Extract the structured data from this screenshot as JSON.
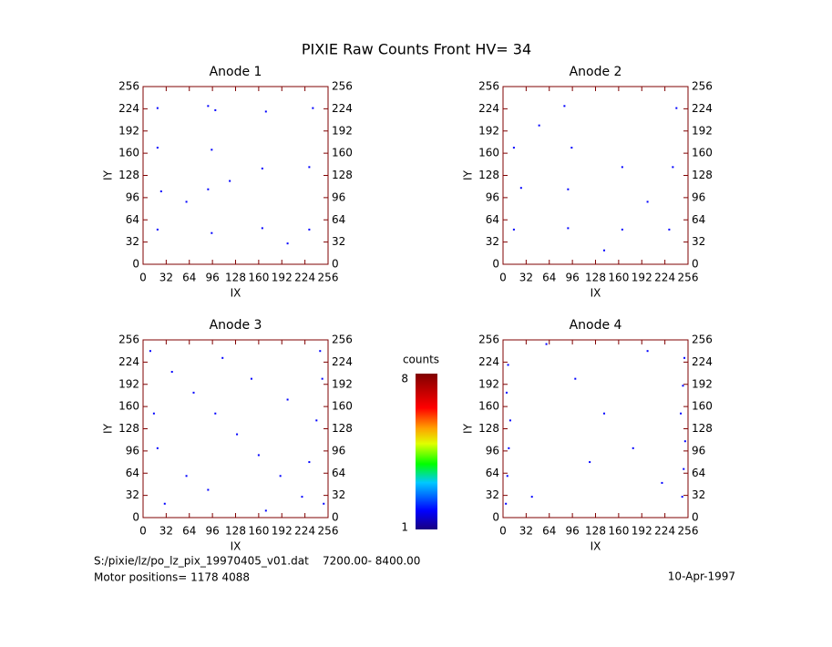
{
  "figure": {
    "title": "PIXIE Raw Counts Front HV= 34",
    "colorbar": {
      "label": "counts",
      "clim": [
        1,
        8
      ],
      "ticks": [
        1,
        8
      ]
    },
    "file_note": "S:/pixie/lz/po_lz_pix_19970405_v01.dat    7200.00- 8400.00",
    "motor_note": "Motor positions= 1178 4088",
    "date": "10-Apr-1997"
  },
  "chart_data": [
    {
      "type": "scatter",
      "title": "Anode 1",
      "xlabel": "IX",
      "ylabel": "IY",
      "xlim": [
        0,
        256
      ],
      "ylim": [
        0,
        256
      ],
      "xticks": [
        0,
        32,
        64,
        96,
        128,
        160,
        192,
        224,
        256
      ],
      "yticks": [
        0,
        32,
        64,
        96,
        128,
        160,
        192,
        224,
        256
      ],
      "series": [
        {
          "color": "#0000ff",
          "x": [
            20,
            90,
            100,
            170,
            235,
            20,
            95,
            165,
            230,
            25,
            90,
            20,
            95,
            165,
            230,
            120,
            60,
            200
          ],
          "y": [
            225,
            228,
            222,
            220,
            225,
            168,
            165,
            138,
            140,
            105,
            108,
            50,
            45,
            52,
            50,
            120,
            90,
            30
          ]
        }
      ]
    },
    {
      "type": "scatter",
      "title": "Anode 2",
      "xlabel": "IX",
      "ylabel": "IY",
      "xlim": [
        0,
        256
      ],
      "ylim": [
        0,
        256
      ],
      "xticks": [
        0,
        32,
        64,
        96,
        128,
        160,
        192,
        224,
        256
      ],
      "yticks": [
        0,
        32,
        64,
        96,
        128,
        160,
        192,
        224,
        256
      ],
      "series": [
        {
          "color": "#0000ff",
          "x": [
            85,
            240,
            15,
            95,
            165,
            235,
            25,
            90,
            15,
            90,
            165,
            230,
            50,
            200,
            140
          ],
          "y": [
            228,
            225,
            168,
            168,
            140,
            140,
            110,
            108,
            50,
            52,
            50,
            50,
            200,
            90,
            20
          ]
        }
      ]
    },
    {
      "type": "scatter",
      "title": "Anode 3",
      "xlabel": "IX",
      "ylabel": "IY",
      "xlim": [
        0,
        256
      ],
      "ylim": [
        0,
        256
      ],
      "xticks": [
        0,
        32,
        64,
        96,
        128,
        160,
        192,
        224,
        256
      ],
      "yticks": [
        0,
        32,
        64,
        96,
        128,
        160,
        192,
        224,
        256
      ],
      "series": [
        {
          "color": "#0000ff",
          "x": [
            10,
            40,
            70,
            100,
            130,
            160,
            190,
            220,
            245,
            250,
            20,
            60,
            110,
            150,
            200,
            240,
            30,
            90,
            170,
            230,
            248,
            15
          ],
          "y": [
            240,
            210,
            180,
            150,
            120,
            90,
            60,
            30,
            240,
            20,
            100,
            60,
            230,
            200,
            170,
            140,
            20,
            40,
            10,
            80,
            200,
            150
          ]
        }
      ]
    },
    {
      "type": "scatter",
      "title": "Anode 4",
      "xlabel": "IX",
      "ylabel": "IY",
      "xlim": [
        0,
        256
      ],
      "ylim": [
        0,
        256
      ],
      "xticks": [
        0,
        32,
        64,
        96,
        128,
        160,
        192,
        224,
        256
      ],
      "yticks": [
        0,
        32,
        64,
        96,
        128,
        160,
        192,
        224,
        256
      ],
      "series": [
        {
          "color": "#0000ff",
          "x": [
            4,
            6,
            8,
            10,
            5,
            7,
            248,
            250,
            252,
            246,
            249,
            251,
            60,
            100,
            140,
            180,
            220,
            40,
            120,
            200
          ],
          "y": [
            20,
            60,
            100,
            140,
            180,
            220,
            30,
            70,
            110,
            150,
            190,
            230,
            250,
            200,
            150,
            100,
            50,
            30,
            80,
            240
          ]
        }
      ]
    }
  ]
}
